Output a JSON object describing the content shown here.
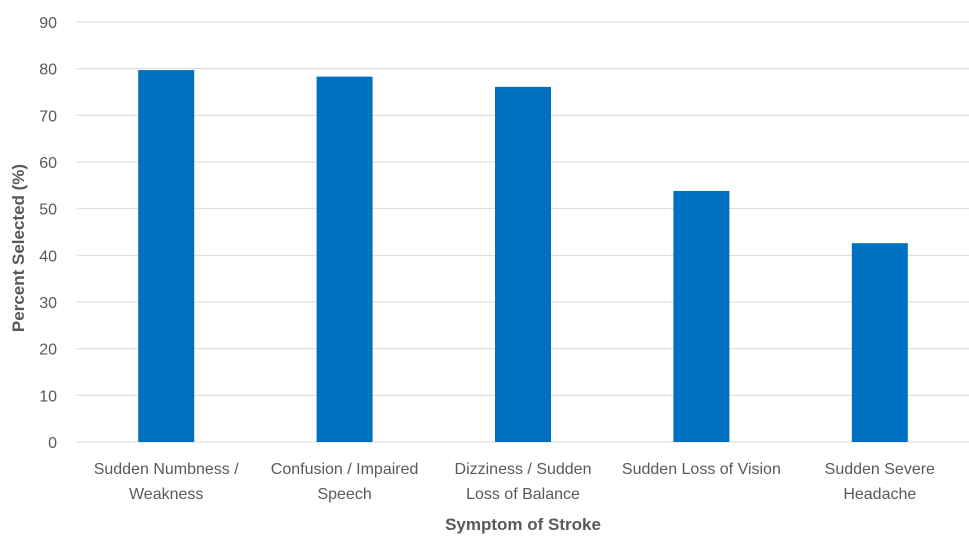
{
  "chart_data": {
    "type": "bar",
    "categories": [
      [
        "Sudden Numbness /",
        "Weakness"
      ],
      [
        "Confusion / Impaired",
        "Speech"
      ],
      [
        "Dizziness / Sudden",
        "Loss of Balance"
      ],
      [
        "Sudden Loss of Vision"
      ],
      [
        "Sudden Severe",
        "Headache"
      ]
    ],
    "values": [
      79.7,
      78.3,
      76.1,
      53.8,
      42.6
    ],
    "xlabel": "Symptom of Stroke",
    "ylabel": "Percent Selected (%)",
    "ylim": [
      0,
      90
    ],
    "yticks": [
      0,
      10,
      20,
      30,
      40,
      50,
      60,
      70,
      80,
      90
    ],
    "grid": true,
    "bar_color": "#0070C0",
    "gridline_color": "#D9D9D9"
  }
}
